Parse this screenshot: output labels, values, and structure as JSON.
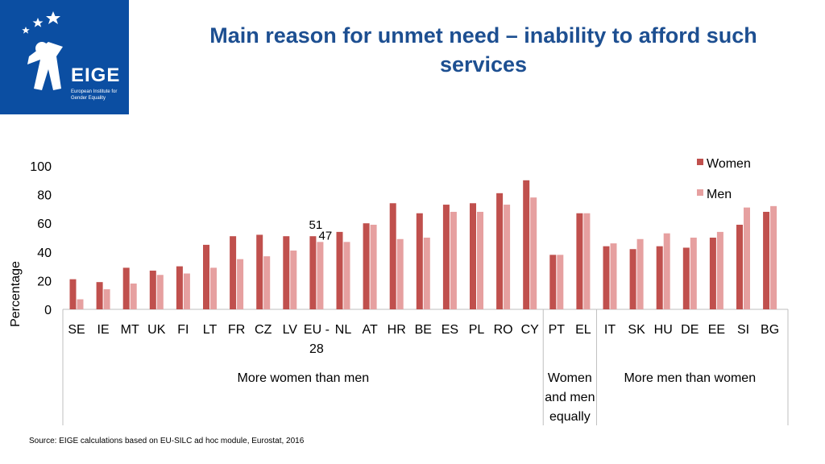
{
  "title": "Main reason for unmet need – inability to afford such services",
  "logo": {
    "brand": "EIGE",
    "subtitle": "European Institute for Gender Equality"
  },
  "source": "Source: EIGE calculations based on EU-SILC ad hoc module, Eurostat, 2016",
  "colors": {
    "women": "#c0504d",
    "men": "#e6a0a0",
    "title": "#1d4f91",
    "logo_bg": "#0b4ea2"
  },
  "chart_data": {
    "type": "bar",
    "title": "Main reason for unmet need – inability to afford such services",
    "ylabel": "Percentage",
    "xlabel": "",
    "ylim": [
      0,
      100
    ],
    "yticks": [
      0,
      20,
      40,
      60,
      80,
      100
    ],
    "categories": [
      "SE",
      "IE",
      "MT",
      "UK",
      "FI",
      "LT",
      "FR",
      "CZ",
      "LV",
      "EU - 28",
      "NL",
      "AT",
      "HR",
      "BE",
      "ES",
      "PL",
      "RO",
      "CY",
      "PT",
      "EL",
      "IT",
      "SK",
      "HU",
      "DE",
      "EE",
      "SI",
      "BG"
    ],
    "series": [
      {
        "name": "Women",
        "values": [
          21,
          19,
          29,
          27,
          30,
          45,
          51,
          52,
          51,
          51,
          54,
          60,
          74,
          67,
          73,
          74,
          81,
          90,
          38,
          67,
          44,
          42,
          44,
          43,
          50,
          59,
          68
        ]
      },
      {
        "name": "Men",
        "values": [
          7,
          14,
          18,
          24,
          25,
          29,
          35,
          37,
          41,
          47,
          47,
          59,
          49,
          50,
          68,
          68,
          73,
          78,
          38,
          67,
          46,
          49,
          53,
          50,
          54,
          71,
          72
        ]
      }
    ],
    "data_labels": [
      {
        "category": "EU - 28",
        "series": "Women",
        "text": "51"
      },
      {
        "category": "EU - 28",
        "series": "Men",
        "text": "47"
      }
    ],
    "groups": [
      {
        "label": "More women than men",
        "from": 0,
        "to": 17
      },
      {
        "label": "Women and men equally",
        "from": 18,
        "to": 19
      },
      {
        "label": "More men than women",
        "from": 20,
        "to": 26
      }
    ],
    "legend": {
      "position": "top-right",
      "entries": [
        "Women",
        "Men"
      ]
    }
  }
}
